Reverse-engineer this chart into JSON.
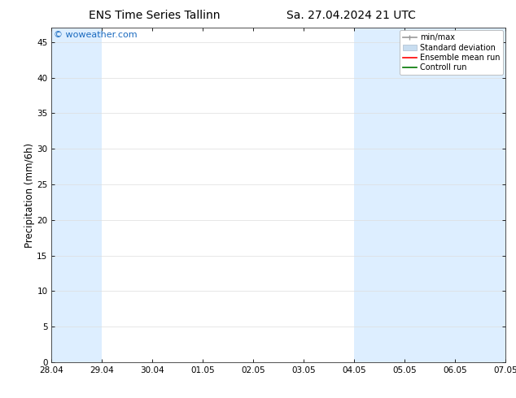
{
  "title_left": "ENS Time Series Tallinn",
  "title_right": "Sa. 27.04.2024 21 UTC",
  "ylabel": "Precipitation (mm/6h)",
  "xlabel_ticks": [
    "28.04",
    "29.04",
    "30.04",
    "01.05",
    "02.05",
    "03.05",
    "04.05",
    "05.05",
    "06.05",
    "07.05"
  ],
  "xlim": [
    0,
    9
  ],
  "ylim": [
    0,
    47
  ],
  "yticks": [
    0,
    5,
    10,
    15,
    20,
    25,
    30,
    35,
    40,
    45
  ],
  "watermark": "© woweather.com",
  "watermark_color": "#1a6abf",
  "background_color": "#ffffff",
  "plot_bg_color": "#ffffff",
  "shaded_columns": [
    {
      "x_start": 0.0,
      "x_end": 1.0,
      "color": "#ddeeff"
    },
    {
      "x_start": 6.0,
      "x_end": 7.0,
      "color": "#ddeeff"
    },
    {
      "x_start": 7.0,
      "x_end": 8.0,
      "color": "#ddeeff"
    },
    {
      "x_start": 8.0,
      "x_end": 9.0,
      "color": "#ddeeff"
    }
  ],
  "legend_entries": [
    {
      "label": "min/max",
      "color": "#999999",
      "lw": 1.2
    },
    {
      "label": "Standard deviation",
      "color": "#c8ddf0",
      "lw": 7
    },
    {
      "label": "Ensemble mean run",
      "color": "#ff0000",
      "lw": 1.2
    },
    {
      "label": "Controll run",
      "color": "#007700",
      "lw": 1.2
    }
  ],
  "title_fontsize": 10,
  "tick_fontsize": 7.5,
  "ylabel_fontsize": 8.5,
  "watermark_fontsize": 8,
  "legend_fontsize": 7
}
